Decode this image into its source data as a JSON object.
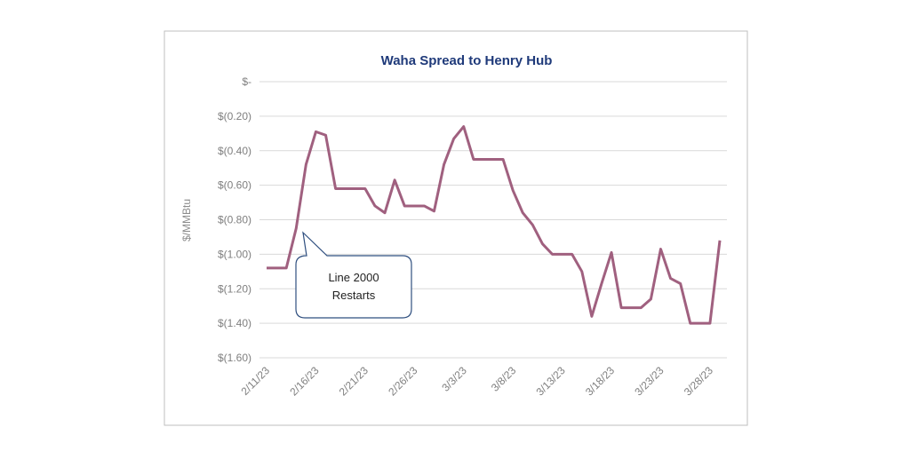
{
  "chart_data": {
    "type": "line",
    "title": "Waha Spread to Henry Hub",
    "y_label": "$/MMBtu",
    "categories": [
      "2/11/23",
      null,
      null,
      null,
      null,
      "2/16/23",
      null,
      null,
      null,
      null,
      "2/21/23",
      null,
      null,
      null,
      null,
      "2/26/23",
      null,
      null,
      null,
      null,
      "3/3/23",
      null,
      null,
      null,
      null,
      "3/8/23",
      null,
      null,
      null,
      null,
      "3/13/23",
      null,
      null,
      null,
      null,
      "3/18/23",
      null,
      null,
      null,
      null,
      "3/23/23",
      null,
      null,
      null,
      null,
      "3/28/23",
      null
    ],
    "series": [
      {
        "name": "Waha Spread",
        "color": "#a0607f",
        "values": [
          -1.08,
          -1.08,
          -1.08,
          -0.85,
          -0.48,
          -0.29,
          -0.31,
          -0.62,
          -0.62,
          -0.62,
          -0.62,
          -0.72,
          -0.76,
          -0.57,
          -0.72,
          -0.72,
          -0.72,
          -0.75,
          -0.48,
          -0.33,
          -0.26,
          -0.45,
          -0.45,
          -0.45,
          -0.45,
          -0.63,
          -0.76,
          -0.83,
          -0.94,
          -1.0,
          -1.0,
          -1.0,
          -1.1,
          -1.36,
          -1.17,
          -0.99,
          -1.31,
          -1.31,
          -1.31,
          -1.26,
          -0.97,
          -1.14,
          -1.17,
          -1.4,
          -1.4,
          -1.4,
          -0.92
        ]
      }
    ],
    "ylim": [
      -1.6,
      0
    ],
    "yticks": [
      {
        "value": 0,
        "label": "$-"
      },
      {
        "value": -0.2,
        "label": "$(0.20)"
      },
      {
        "value": -0.4,
        "label": "$(0.40)"
      },
      {
        "value": -0.6,
        "label": "$(0.60)"
      },
      {
        "value": -0.8,
        "label": "$(0.80)"
      },
      {
        "value": -1.0,
        "label": "$(1.00)"
      },
      {
        "value": -1.2,
        "label": "$(1.20)"
      },
      {
        "value": -1.4,
        "label": "$(1.40)"
      },
      {
        "value": -1.6,
        "label": "$(1.60)"
      }
    ],
    "grid": true,
    "annotation": {
      "lines": [
        "Line 2000",
        "Restarts"
      ]
    }
  }
}
